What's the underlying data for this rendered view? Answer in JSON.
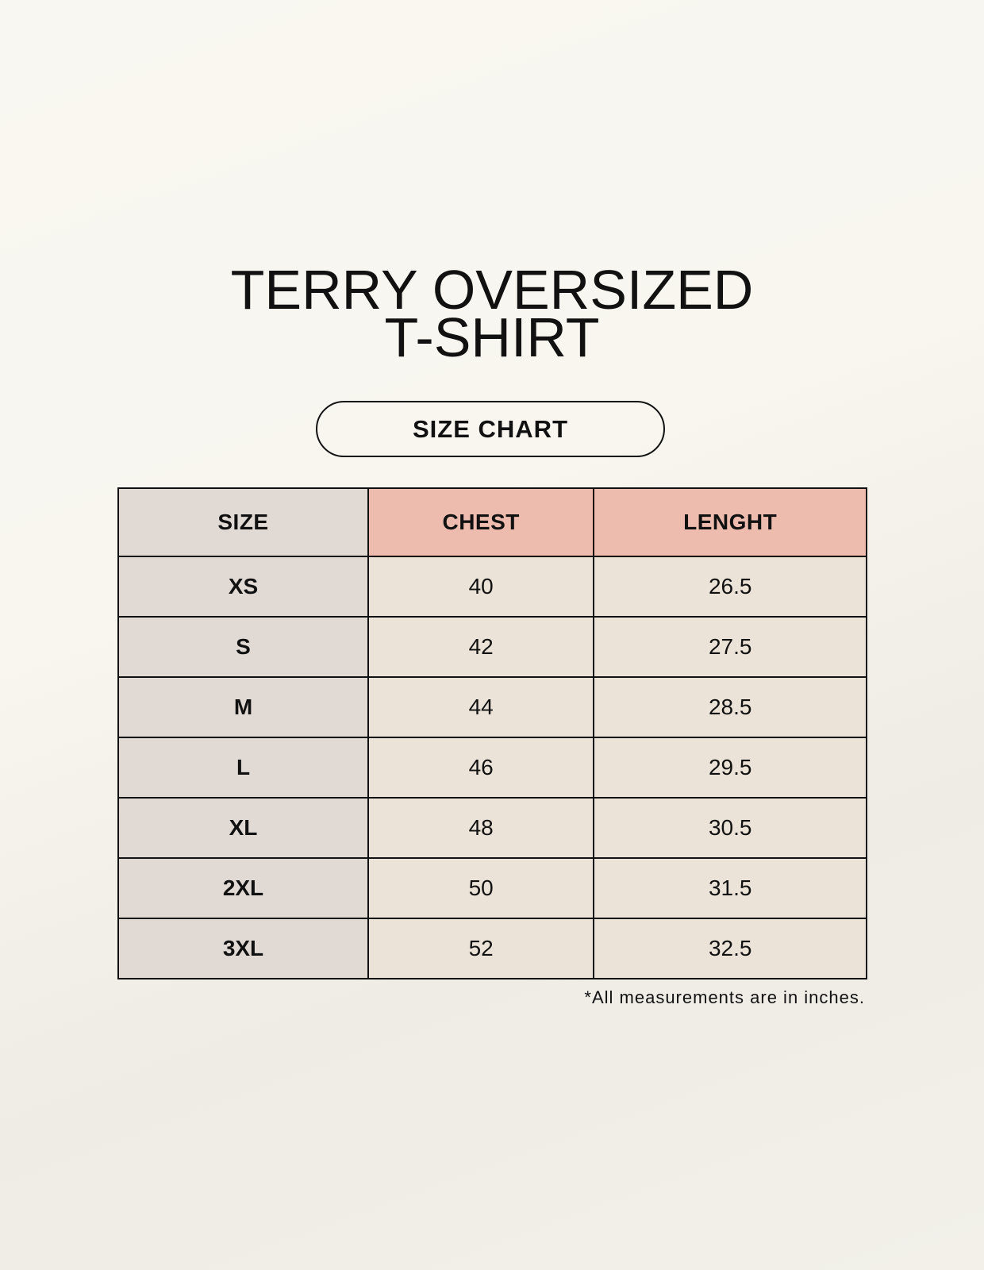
{
  "title": {
    "line1": "TERRY OVERSIZED",
    "line2": "T-SHIRT"
  },
  "badge": "SIZE CHART",
  "colors": {
    "size_column": "#e0d9d4",
    "header_accent": "#edbcae",
    "cell": "#ebe3d8"
  },
  "table": {
    "headers": [
      "SIZE",
      "CHEST",
      "LENGHT"
    ],
    "rows": [
      [
        "XS",
        "40",
        "26.5"
      ],
      [
        "S",
        "42",
        "27.5"
      ],
      [
        "M",
        "44",
        "28.5"
      ],
      [
        "L",
        "46",
        "29.5"
      ],
      [
        "XL",
        "48",
        "30.5"
      ],
      [
        "2XL",
        "50",
        "31.5"
      ],
      [
        "3XL",
        "52",
        "32.5"
      ]
    ]
  },
  "footnote": "*All measurements are in inches."
}
